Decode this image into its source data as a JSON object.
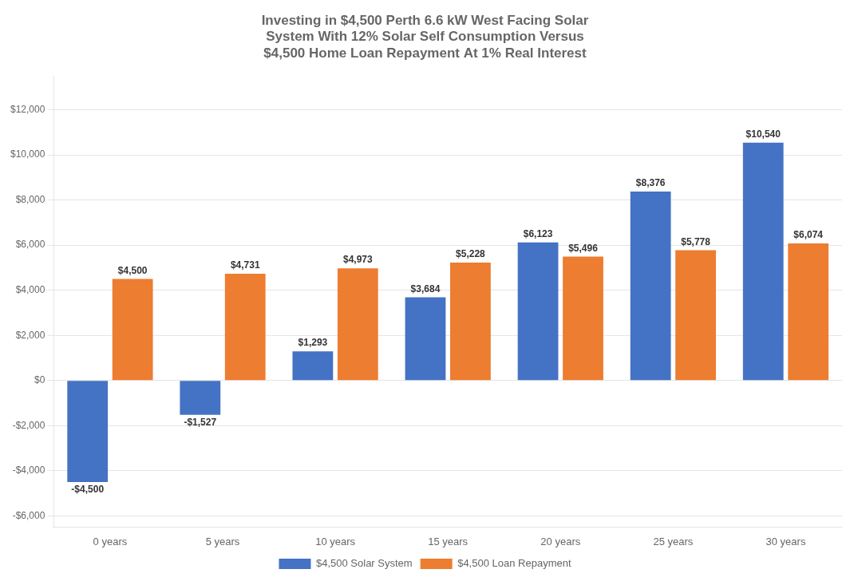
{
  "chart_data": {
    "type": "bar",
    "title": "Investing in $4,500 Perth 6.6 kW West Facing Solar\nSystem With 12% Solar Self Consumption Versus\n$4,500 Home Loan Repayment At 1% Real Interest",
    "categories": [
      "0 years",
      "5 years",
      "10 years",
      "15 years",
      "20 years",
      "25 years",
      "30 years"
    ],
    "series": [
      {
        "name": "$4,500 Solar System",
        "color": "#4472C4",
        "values": [
          -4500,
          -1527,
          1293,
          3684,
          6123,
          8376,
          10540
        ],
        "value_labels": [
          "-$4,500",
          "-$1,527",
          "$1,293",
          "$3,684",
          "$6,123",
          "$8,376",
          "$10,540"
        ]
      },
      {
        "name": "$4,500 Loan Repayment",
        "color": "#ED7D31",
        "values": [
          4500,
          4731,
          4973,
          5228,
          5496,
          5778,
          6074
        ],
        "value_labels": [
          "$4,500",
          "$4,731",
          "$4,973",
          "$5,228",
          "$5,496",
          "$5,778",
          "$6,074"
        ]
      }
    ],
    "ylim": [
      -6500,
      13500
    ],
    "yticks": [
      {
        "value": -6000,
        "label": "-$6,000"
      },
      {
        "value": -4000,
        "label": "-$4,000"
      },
      {
        "value": -2000,
        "label": "-$2,000"
      },
      {
        "value": 0,
        "label": "$0"
      },
      {
        "value": 2000,
        "label": "$2,000"
      },
      {
        "value": 4000,
        "label": "$4,000"
      },
      {
        "value": 6000,
        "label": "$6,000"
      },
      {
        "value": 8000,
        "label": "$8,000"
      },
      {
        "value": 10000,
        "label": "$10,000"
      },
      {
        "value": 12000,
        "label": "$12,000"
      }
    ],
    "grid": true,
    "legend": "bottom",
    "data_labels": true
  }
}
